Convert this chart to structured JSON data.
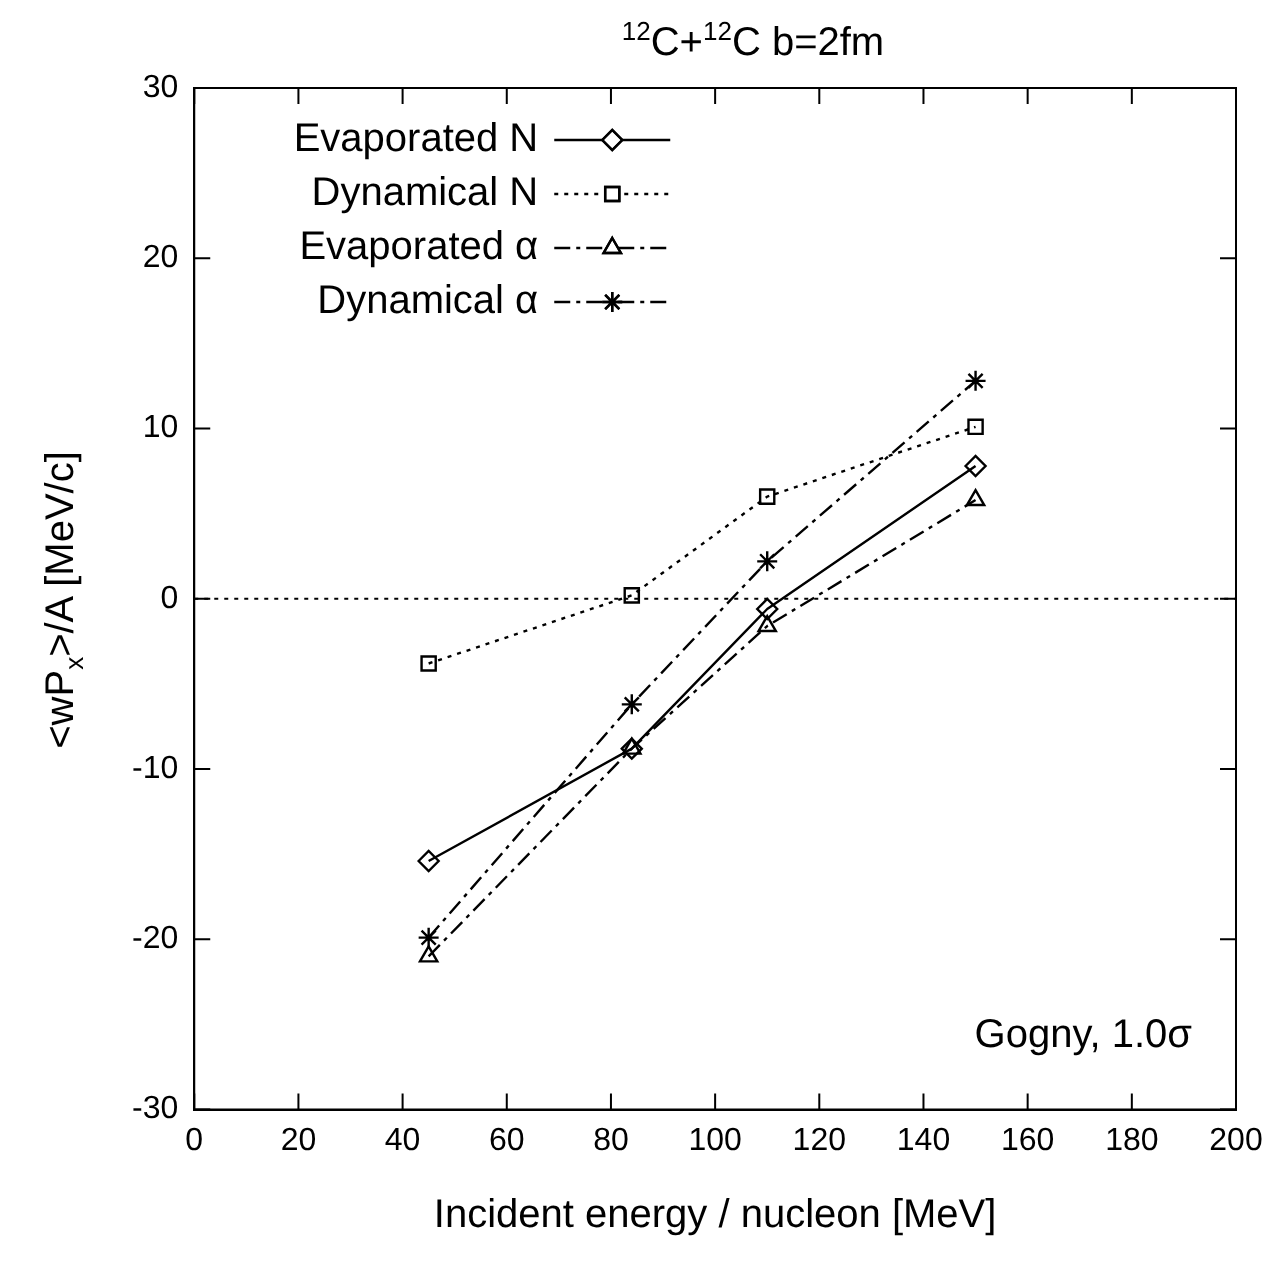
{
  "chart_data": {
    "type": "line",
    "title": "$^{12}$C+$^{12}$C   b=2fm",
    "xlabel": "Incident energy / nucleon [MeV]",
    "ylabel": "<wP$_{x}$>/A [MeV/c]",
    "x": [
      45,
      84,
      110,
      150
    ],
    "series": [
      {
        "name": "Evaporated N",
        "color": "#000000",
        "marker": "diamond",
        "line_style": "solid",
        "values": [
          -15.4,
          -8.8,
          -0.6,
          7.8
        ]
      },
      {
        "name": "Dynamical N",
        "color": "#000000",
        "marker": "square",
        "line_style": "dotted",
        "values": [
          -3.8,
          0.2,
          6.0,
          10.1
        ]
      },
      {
        "name": "Evaporated α",
        "color": "#000000",
        "marker": "triangle",
        "line_style": "dashed",
        "values": [
          -21,
          -8.8,
          -1.6,
          5.8
        ]
      },
      {
        "name": "Dynamical α",
        "color": "#000000",
        "marker": "cross",
        "line_style": "dashed",
        "values": [
          -19.9,
          -6.2,
          2.2,
          12.8
        ]
      }
    ],
    "xlim": [
      0,
      200
    ],
    "xticks": [
      0,
      20,
      40,
      60,
      80,
      100,
      120,
      140,
      160,
      180,
      200
    ],
    "ylim": [
      -30,
      30
    ],
    "yticks": [
      -30,
      -20,
      -10,
      0,
      10,
      20,
      30
    ],
    "ref_lines": [
      {
        "axis": "y",
        "value": 0,
        "line_style": "dotted",
        "color": "#000000"
      }
    ],
    "annotations": [
      "Gogny, 1.0σ"
    ],
    "legend": "top left",
    "grid": false
  }
}
